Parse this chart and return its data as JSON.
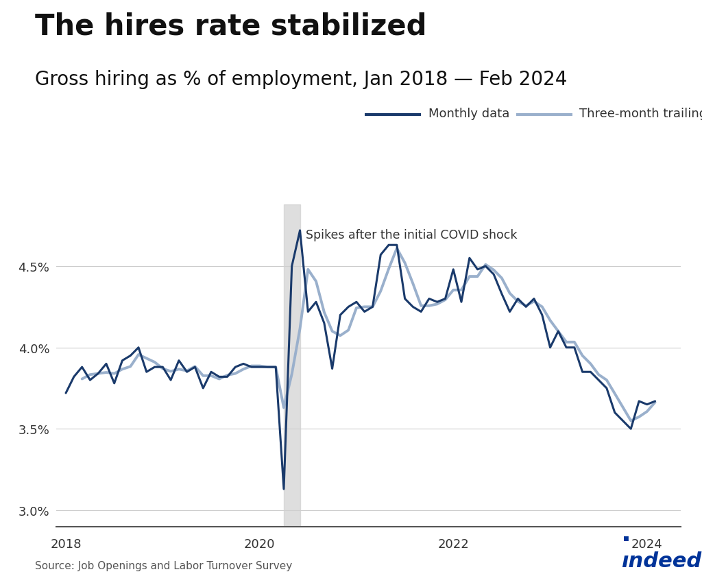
{
  "title": "The hires rate stabilized",
  "subtitle": "Gross hiring as % of employment, Jan 2018 — Feb 2024",
  "annotation": "Spikes after the initial COVID shock",
  "legend": [
    "Monthly data",
    "Three-month trailing average"
  ],
  "monthly_color": "#1a3a6b",
  "trailing_color": "#9ab0cc",
  "background_color": "#ffffff",
  "covid_shade_color": "#d0d0d0",
  "source_text": "Source: Job Openings and Labor Turnover Survey",
  "xlim_start": 2017.9,
  "xlim_end": 2024.35,
  "ylim": [
    2.9,
    4.88
  ],
  "yticks": [
    3.0,
    3.5,
    4.0,
    4.5
  ],
  "xticks": [
    2018,
    2020,
    2022,
    2024
  ],
  "monthly_data": [
    [
      2018.0,
      3.72
    ],
    [
      2018.083,
      3.82
    ],
    [
      2018.167,
      3.88
    ],
    [
      2018.25,
      3.8
    ],
    [
      2018.333,
      3.84
    ],
    [
      2018.417,
      3.9
    ],
    [
      2018.5,
      3.78
    ],
    [
      2018.583,
      3.92
    ],
    [
      2018.667,
      3.95
    ],
    [
      2018.75,
      4.0
    ],
    [
      2018.833,
      3.85
    ],
    [
      2018.917,
      3.88
    ],
    [
      2019.0,
      3.88
    ],
    [
      2019.083,
      3.8
    ],
    [
      2019.167,
      3.92
    ],
    [
      2019.25,
      3.85
    ],
    [
      2019.333,
      3.88
    ],
    [
      2019.417,
      3.75
    ],
    [
      2019.5,
      3.85
    ],
    [
      2019.583,
      3.82
    ],
    [
      2019.667,
      3.82
    ],
    [
      2019.75,
      3.88
    ],
    [
      2019.833,
      3.9
    ],
    [
      2019.917,
      3.88
    ],
    [
      2020.0,
      3.88
    ],
    [
      2020.083,
      3.88
    ],
    [
      2020.167,
      3.88
    ],
    [
      2020.25,
      3.13
    ],
    [
      2020.333,
      4.5
    ],
    [
      2020.417,
      4.72
    ],
    [
      2020.5,
      4.22
    ],
    [
      2020.583,
      4.28
    ],
    [
      2020.667,
      4.15
    ],
    [
      2020.75,
      3.87
    ],
    [
      2020.833,
      4.2
    ],
    [
      2020.917,
      4.25
    ],
    [
      2021.0,
      4.28
    ],
    [
      2021.083,
      4.22
    ],
    [
      2021.167,
      4.25
    ],
    [
      2021.25,
      4.57
    ],
    [
      2021.333,
      4.63
    ],
    [
      2021.417,
      4.63
    ],
    [
      2021.5,
      4.3
    ],
    [
      2021.583,
      4.25
    ],
    [
      2021.667,
      4.22
    ],
    [
      2021.75,
      4.3
    ],
    [
      2021.833,
      4.28
    ],
    [
      2021.917,
      4.3
    ],
    [
      2022.0,
      4.48
    ],
    [
      2022.083,
      4.28
    ],
    [
      2022.167,
      4.55
    ],
    [
      2022.25,
      4.48
    ],
    [
      2022.333,
      4.5
    ],
    [
      2022.417,
      4.45
    ],
    [
      2022.5,
      4.33
    ],
    [
      2022.583,
      4.22
    ],
    [
      2022.667,
      4.3
    ],
    [
      2022.75,
      4.25
    ],
    [
      2022.833,
      4.3
    ],
    [
      2022.917,
      4.2
    ],
    [
      2023.0,
      4.0
    ],
    [
      2023.083,
      4.1
    ],
    [
      2023.167,
      4.0
    ],
    [
      2023.25,
      4.0
    ],
    [
      2023.333,
      3.85
    ],
    [
      2023.417,
      3.85
    ],
    [
      2023.5,
      3.8
    ],
    [
      2023.583,
      3.75
    ],
    [
      2023.667,
      3.6
    ],
    [
      2023.75,
      3.55
    ],
    [
      2023.833,
      3.5
    ],
    [
      2023.917,
      3.67
    ],
    [
      2024.0,
      3.65
    ],
    [
      2024.083,
      3.67
    ]
  ],
  "covid_shade_start": 2020.25,
  "covid_shade_end": 2020.42
}
